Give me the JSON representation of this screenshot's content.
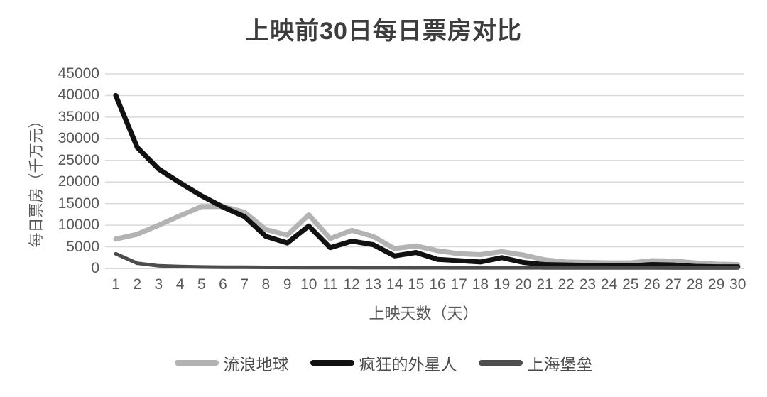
{
  "chart_data": {
    "type": "line",
    "title": "上映前30日每日票房对比",
    "xlabel": "上映天数（天）",
    "ylabel": "每日票房（千万元）",
    "x": [
      1,
      2,
      3,
      4,
      5,
      6,
      7,
      8,
      9,
      10,
      11,
      12,
      13,
      14,
      15,
      16,
      17,
      18,
      19,
      20,
      21,
      22,
      23,
      24,
      25,
      26,
      27,
      28,
      29,
      30
    ],
    "ylim": [
      0,
      45000
    ],
    "ytick_step": 5000,
    "grid": true,
    "legend_position": "bottom",
    "colors": {
      "gridline": "#d9d9d9",
      "axis_line": "#cfcfcf",
      "axis_text": "#595959",
      "title_text": "#3d3d3d"
    },
    "series": [
      {
        "name": "流浪地球",
        "color": "#b3b3b3",
        "stroke_width": 7,
        "values": [
          6800,
          7900,
          10000,
          12200,
          14300,
          14300,
          13000,
          9000,
          7700,
          12400,
          6900,
          8800,
          7400,
          4600,
          5200,
          4100,
          3400,
          3200,
          3900,
          3100,
          2000,
          1500,
          1400,
          1300,
          1300,
          1800,
          1700,
          1300,
          1000,
          900
        ]
      },
      {
        "name": "疯狂的外星人",
        "color": "#111111",
        "stroke_width": 7,
        "values": [
          40000,
          28000,
          23000,
          19800,
          16800,
          14200,
          12000,
          7400,
          5900,
          9800,
          4800,
          6300,
          5500,
          2900,
          3700,
          2100,
          1800,
          1500,
          2500,
          1400,
          900,
          800,
          700,
          700,
          600,
          900,
          800,
          500,
          400,
          400
        ]
      },
      {
        "name": "上海堡垒",
        "color": "#4d4d4d",
        "stroke_width": 5,
        "values": [
          3400,
          1200,
          600,
          450,
          350,
          300,
          280,
          250,
          230,
          220,
          200,
          200,
          180,
          180,
          160,
          160,
          150,
          150,
          140,
          140,
          130,
          130,
          120,
          120,
          110,
          110,
          100,
          100,
          100,
          100
        ]
      }
    ]
  }
}
